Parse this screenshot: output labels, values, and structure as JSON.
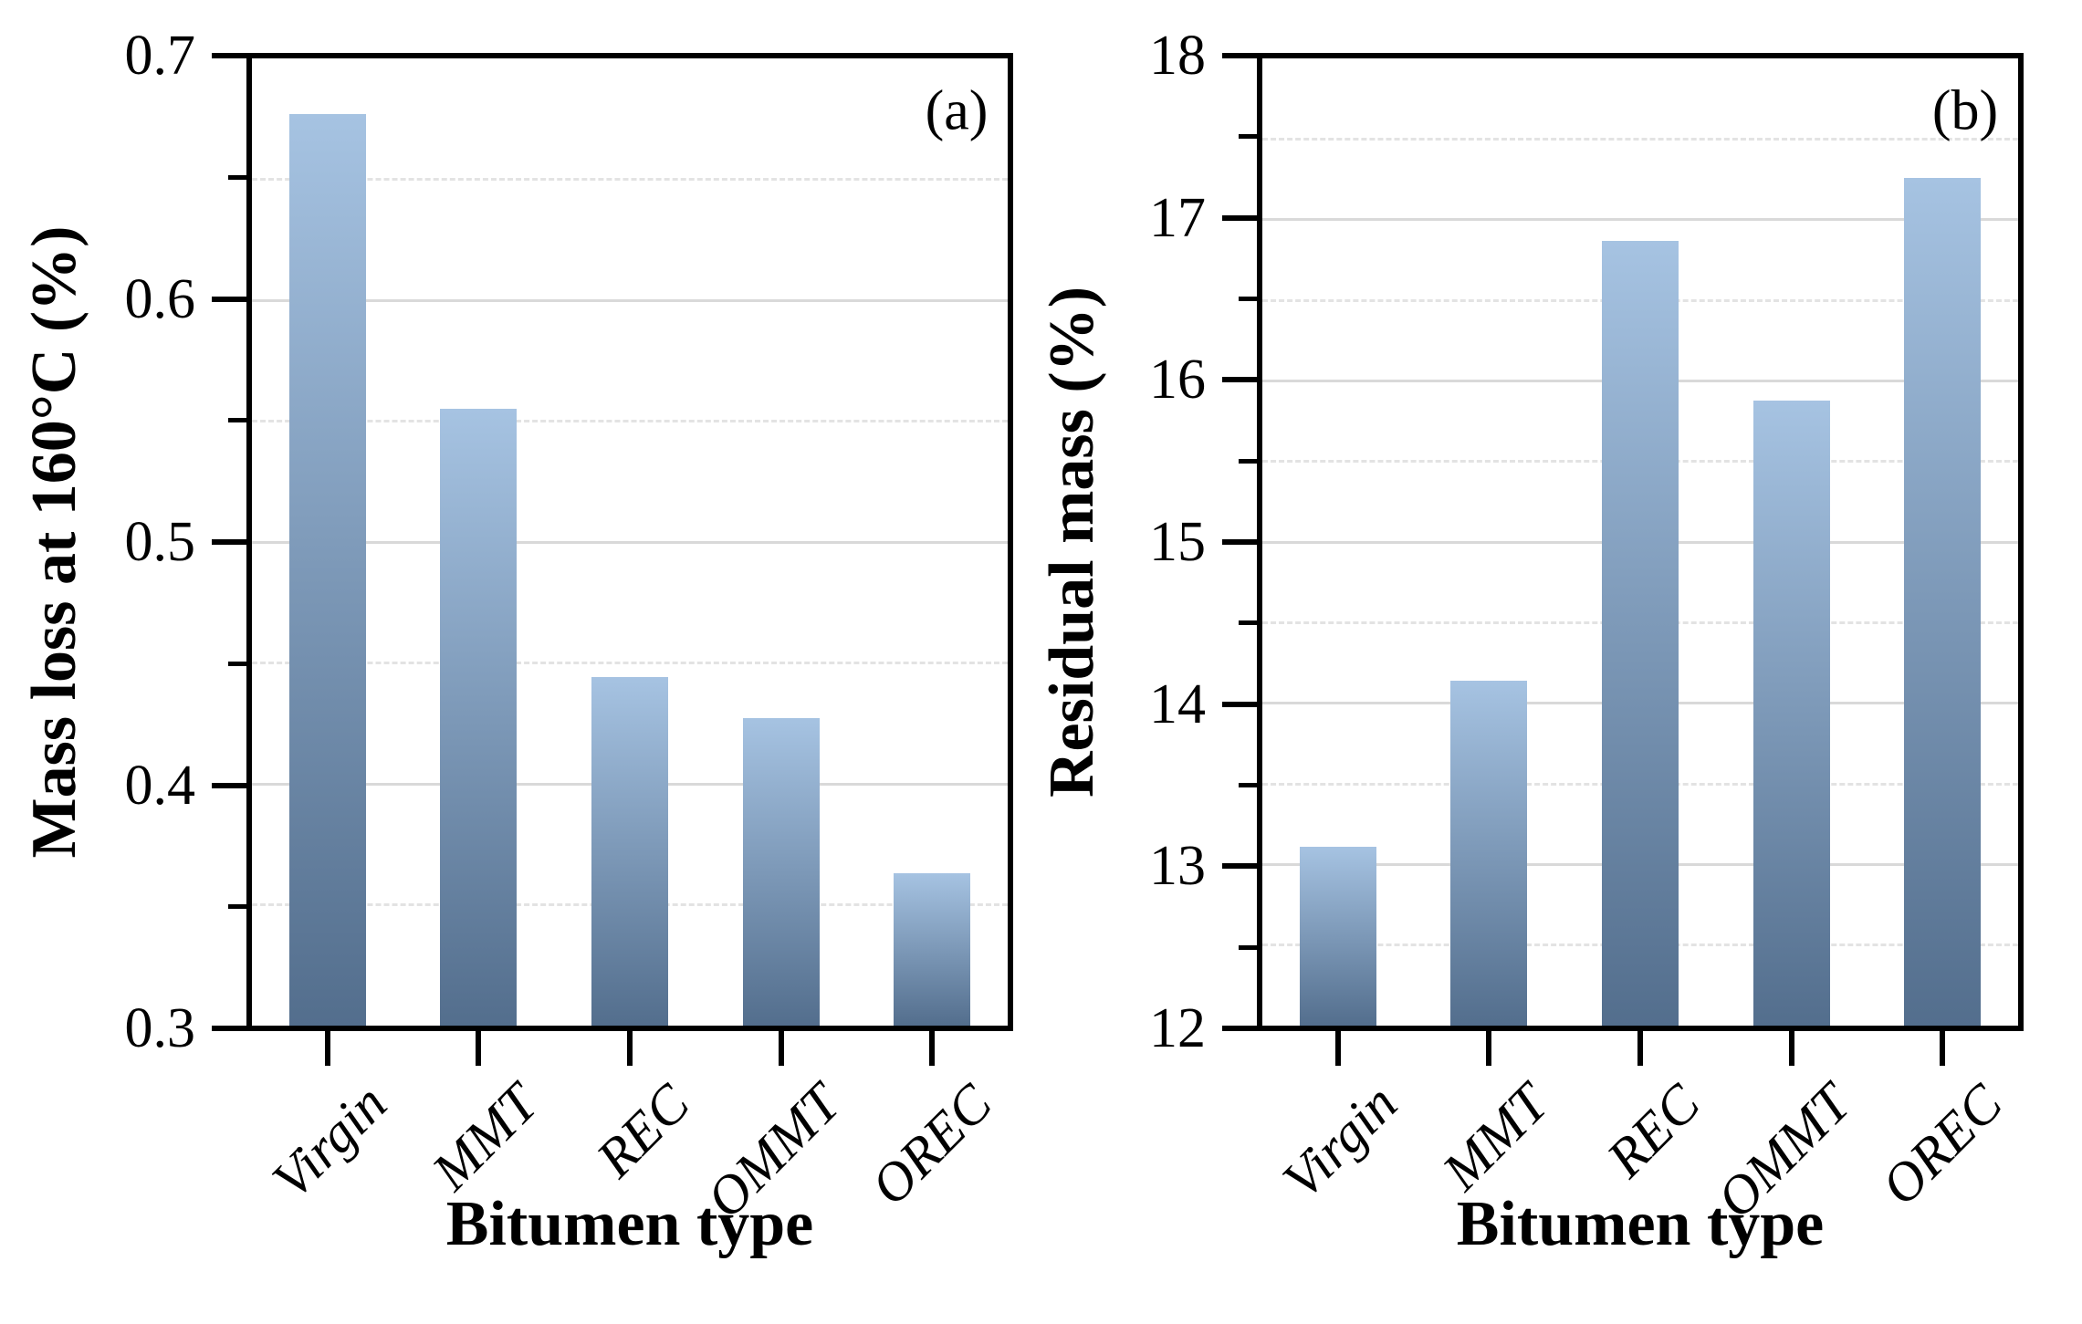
{
  "colors": {
    "background": "#ffffff",
    "text": "#000000",
    "axis": "#000000",
    "grid_major": "#d9d9d9",
    "grid_minor": "#e3e3e3",
    "bar_top": "#a6c3e2",
    "bar_bottom": "#536e8d"
  },
  "chart_data": [
    {
      "type": "bar",
      "panel": "(a)",
      "categories": [
        "Virgin",
        "MMT",
        "REC",
        "OMMT",
        "OREC"
      ],
      "values": [
        0.677,
        0.555,
        0.444,
        0.427,
        0.363
      ],
      "xlabel": "Bitumen type",
      "ylabel": "Mass loss at 160°C (%)",
      "ylim": [
        0.3,
        0.7
      ],
      "ytick_major": 0.1,
      "ytick_minor": 0.05,
      "ytick_labels": [
        "0.7",
        "0.6",
        "0.5",
        "0.4",
        "0.3"
      ],
      "grid": "major-solid, minor-dashed, horizontal only",
      "legend": "none"
    },
    {
      "type": "bar",
      "panel": "(b)",
      "categories": [
        "Virgin",
        "MMT",
        "REC",
        "OMMT",
        "OREC"
      ],
      "values": [
        13.11,
        14.14,
        16.87,
        15.88,
        17.26
      ],
      "xlabel": "Bitumen type",
      "ylabel": "Residual mass (%)",
      "ylim": [
        12,
        18
      ],
      "ytick_major": 1,
      "ytick_minor": 0.5,
      "ytick_labels": [
        "18",
        "17",
        "16",
        "15",
        "14",
        "13",
        "12"
      ],
      "grid": "major-solid, minor-dashed, horizontal only",
      "legend": "none"
    }
  ]
}
